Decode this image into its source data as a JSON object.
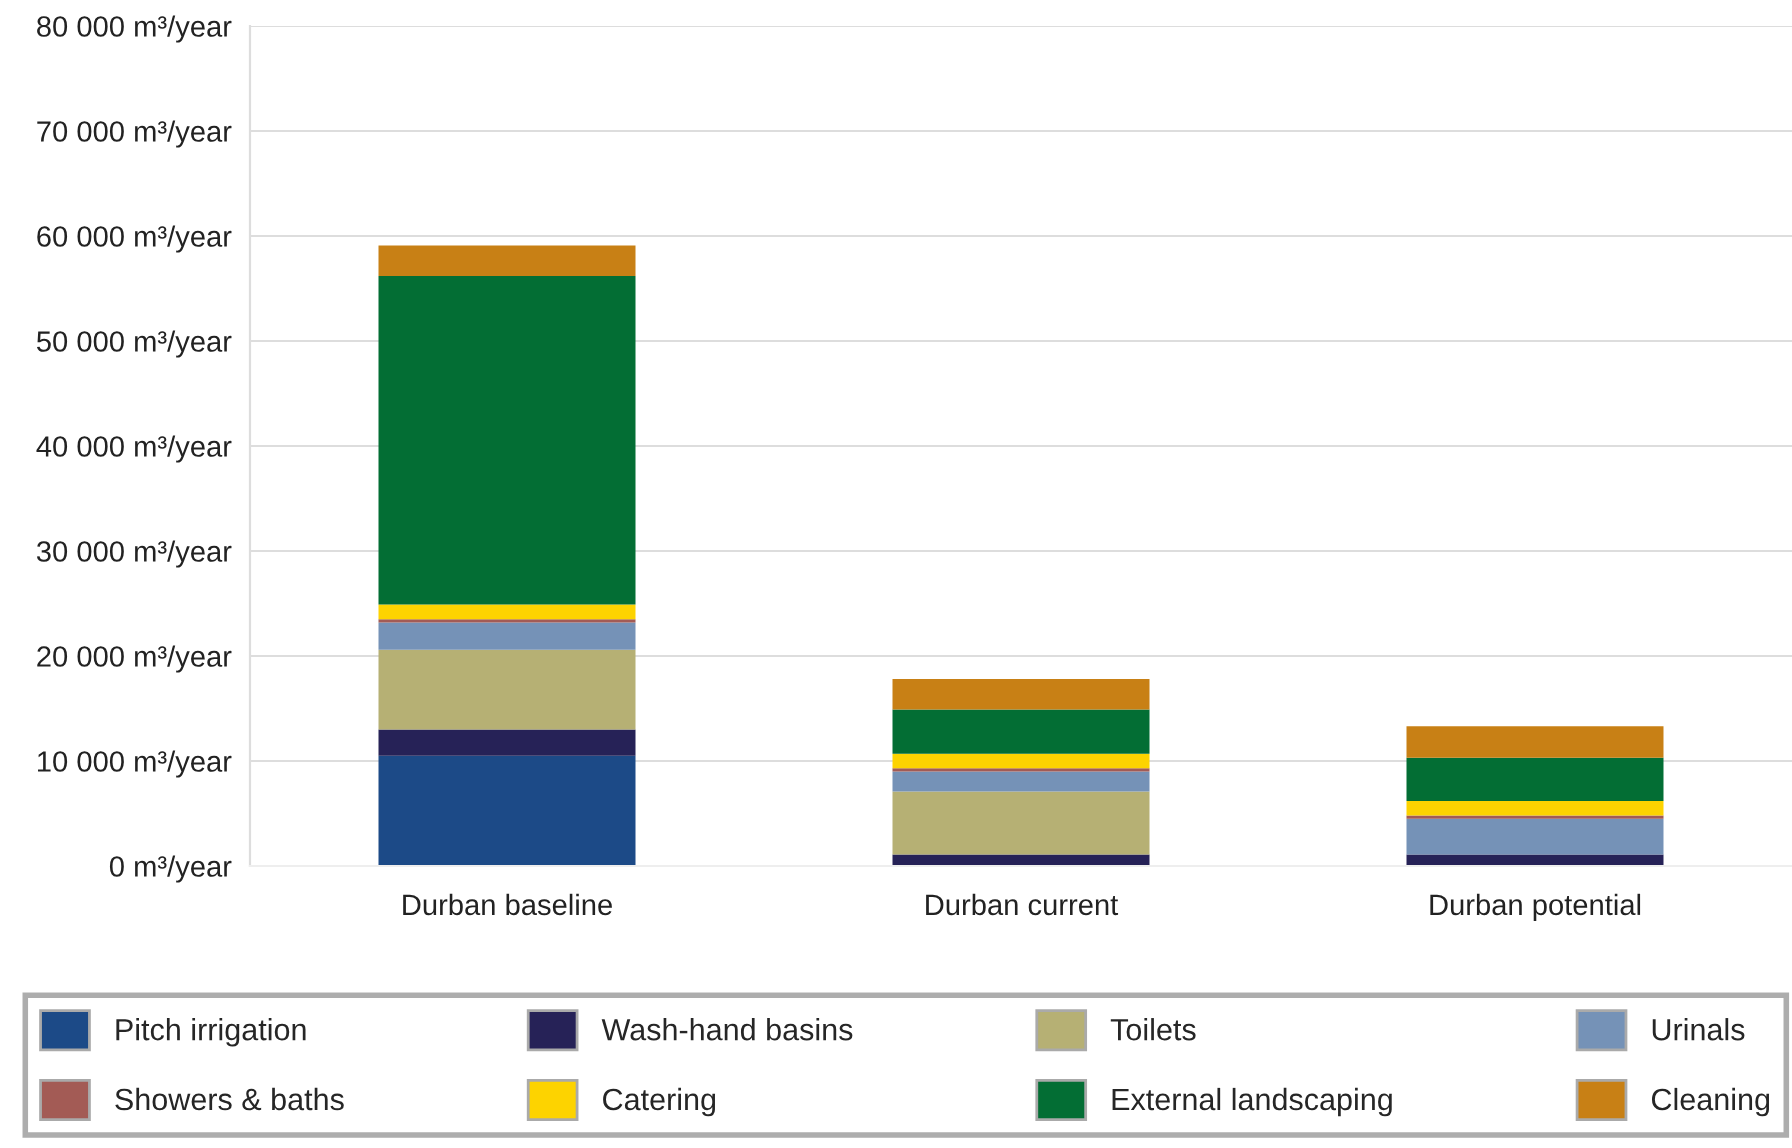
{
  "chart_data": {
    "type": "bar",
    "stacked": true,
    "categories": [
      "Durban baseline",
      "Durban current",
      "Durban potential"
    ],
    "series": [
      {
        "name": "Pitch irrigation",
        "color": "#1c4a87",
        "values": [
          10500,
          0,
          0
        ]
      },
      {
        "name": "Wash-hand basins",
        "color": "#262257",
        "values": [
          2500,
          1100,
          1100
        ]
      },
      {
        "name": "Toilets",
        "color": "#b6b074",
        "values": [
          7600,
          6000,
          0
        ]
      },
      {
        "name": "Urinals",
        "color": "#7592b7",
        "values": [
          2600,
          1900,
          3400
        ]
      },
      {
        "name": "Showers & baths",
        "color": "#a35b55",
        "values": [
          300,
          300,
          300
        ]
      },
      {
        "name": "Catering",
        "color": "#fdd300",
        "values": [
          1400,
          1400,
          1400
        ]
      },
      {
        "name": "External landscaping",
        "color": "#036e34",
        "values": [
          31300,
          4200,
          4100
        ]
      },
      {
        "name": "Cleaning",
        "color": "#c88015",
        "values": [
          2900,
          2900,
          3000
        ]
      }
    ],
    "ylim": [
      0,
      80000
    ],
    "yticks": [
      {
        "value": 0,
        "label": "0 m³/year"
      },
      {
        "value": 10000,
        "label": "10 000 m³/year"
      },
      {
        "value": 20000,
        "label": "20 000 m³/year"
      },
      {
        "value": 30000,
        "label": "30 000 m³/year"
      },
      {
        "value": 40000,
        "label": "40 000 m³/year"
      },
      {
        "value": 50000,
        "label": "50 000 m³/year"
      },
      {
        "value": 60000,
        "label": "60 000 m³/year"
      },
      {
        "value": 70000,
        "label": "70 000 m³/year"
      },
      {
        "value": 80000,
        "label": "80 000 m³/year"
      }
    ],
    "grid": "y",
    "legend": "bottom left"
  }
}
